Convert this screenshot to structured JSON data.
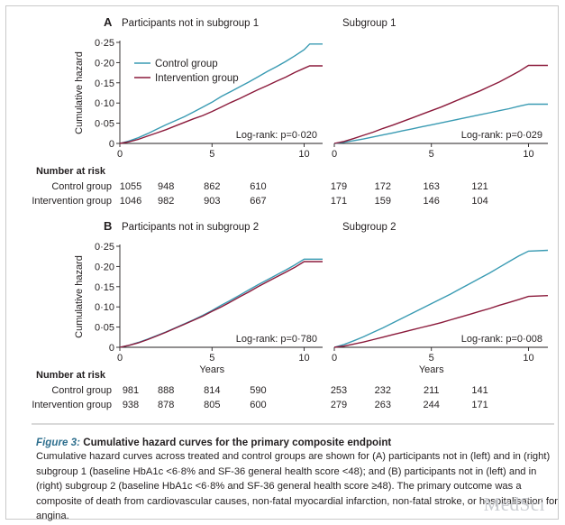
{
  "chart_data": [
    {
      "type": "line",
      "panel_letter": "A",
      "title": "Participants not in subgroup 1",
      "ylabel": "Cumulative hazard",
      "xlabel": "",
      "xlim": [
        0,
        11
      ],
      "ylim": [
        0,
        0.25
      ],
      "xticks": [
        0,
        5,
        10
      ],
      "yticks": [
        "0",
        "0·05",
        "0·10",
        "0·15",
        "0·20",
        "0·25"
      ],
      "legend": "top-left",
      "annotation": "Log-rank: p=0·020",
      "series": [
        {
          "name": "Control group",
          "color": "#3a9bb3",
          "x": [
            0,
            0.5,
            1,
            1.5,
            2,
            2.5,
            3,
            3.5,
            4,
            4.5,
            5,
            5.5,
            6,
            6.5,
            7,
            7.5,
            8,
            8.5,
            9,
            9.5,
            10,
            10.3,
            11
          ],
          "y": [
            0,
            0.006,
            0.014,
            0.024,
            0.035,
            0.046,
            0.056,
            0.066,
            0.078,
            0.09,
            0.102,
            0.116,
            0.128,
            0.14,
            0.152,
            0.165,
            0.178,
            0.19,
            0.203,
            0.217,
            0.232,
            0.246,
            0.246
          ]
        },
        {
          "name": "Intervention group",
          "color": "#8b1a3b",
          "x": [
            0,
            0.5,
            1,
            1.5,
            2,
            2.5,
            3,
            3.5,
            4,
            4.5,
            5,
            5.5,
            6,
            6.5,
            7,
            7.5,
            8,
            8.5,
            9,
            9.5,
            10,
            10.3,
            11
          ],
          "y": [
            0,
            0.004,
            0.01,
            0.018,
            0.026,
            0.034,
            0.043,
            0.052,
            0.061,
            0.069,
            0.079,
            0.09,
            0.101,
            0.111,
            0.122,
            0.133,
            0.143,
            0.154,
            0.164,
            0.176,
            0.186,
            0.192,
            0.192
          ]
        }
      ]
    },
    {
      "type": "line",
      "panel_letter": "",
      "title": "Subgroup 1",
      "ylabel": "",
      "xlabel": "",
      "xlim": [
        0,
        11
      ],
      "ylim": [
        0,
        0.25
      ],
      "xticks": [
        0,
        5,
        10
      ],
      "annotation": "Log-rank: p=0·029",
      "series": [
        {
          "name": "Control group",
          "color": "#3a9bb3",
          "x": [
            0,
            0.5,
            1,
            1.5,
            2,
            2.5,
            3,
            3.5,
            4,
            4.5,
            5,
            5.5,
            6,
            6.5,
            7,
            7.5,
            8,
            8.5,
            9,
            9.5,
            10,
            11
          ],
          "y": [
            0,
            0.003,
            0.007,
            0.011,
            0.016,
            0.021,
            0.026,
            0.031,
            0.036,
            0.041,
            0.046,
            0.051,
            0.056,
            0.061,
            0.066,
            0.071,
            0.076,
            0.081,
            0.086,
            0.092,
            0.097,
            0.097
          ]
        },
        {
          "name": "Intervention group",
          "color": "#8b1a3b",
          "x": [
            0,
            0.5,
            1,
            1.5,
            2,
            2.5,
            3,
            3.5,
            4,
            4.5,
            5,
            5.5,
            6,
            6.5,
            7,
            7.5,
            8,
            8.5,
            9,
            9.5,
            10,
            11
          ],
          "y": [
            0,
            0.005,
            0.012,
            0.02,
            0.028,
            0.037,
            0.045,
            0.054,
            0.063,
            0.072,
            0.081,
            0.09,
            0.1,
            0.11,
            0.12,
            0.13,
            0.141,
            0.152,
            0.165,
            0.178,
            0.193,
            0.193
          ]
        }
      ]
    },
    {
      "type": "line",
      "panel_letter": "B",
      "title": "Participants not in subgroup 2",
      "ylabel": "Cumulative hazard",
      "xlabel": "Years",
      "xlim": [
        0,
        11
      ],
      "ylim": [
        0,
        0.25
      ],
      "xticks": [
        0,
        5,
        10
      ],
      "yticks": [
        "0",
        "0·05",
        "0·10",
        "0·15",
        "0·20",
        "0·25"
      ],
      "annotation": "Log-rank: p=0·780",
      "series": [
        {
          "name": "Control group",
          "color": "#3a9bb3",
          "x": [
            0,
            0.5,
            1,
            1.5,
            2,
            2.5,
            3,
            3.5,
            4,
            4.5,
            5,
            5.5,
            6,
            6.5,
            7,
            7.5,
            8,
            8.5,
            9,
            9.5,
            10,
            11
          ],
          "y": [
            0,
            0.005,
            0.012,
            0.02,
            0.029,
            0.038,
            0.048,
            0.058,
            0.068,
            0.079,
            0.091,
            0.104,
            0.116,
            0.129,
            0.142,
            0.155,
            0.167,
            0.179,
            0.191,
            0.204,
            0.218,
            0.218
          ]
        },
        {
          "name": "Intervention group",
          "color": "#8b1a3b",
          "x": [
            0,
            0.5,
            1,
            1.5,
            2,
            2.5,
            3,
            3.5,
            4,
            4.5,
            5,
            5.5,
            6,
            6.5,
            7,
            7.5,
            8,
            8.5,
            9,
            9.5,
            10,
            11
          ],
          "y": [
            0,
            0.005,
            0.011,
            0.019,
            0.028,
            0.037,
            0.047,
            0.057,
            0.067,
            0.077,
            0.089,
            0.1,
            0.112,
            0.125,
            0.137,
            0.15,
            0.162,
            0.174,
            0.186,
            0.198,
            0.212,
            0.212
          ]
        }
      ]
    },
    {
      "type": "line",
      "panel_letter": "",
      "title": "Subgroup 2",
      "ylabel": "",
      "xlabel": "Years",
      "xlim": [
        0,
        11
      ],
      "ylim": [
        0,
        0.25
      ],
      "xticks": [
        0,
        5,
        10
      ],
      "annotation": "Log-rank: p=0·008",
      "series": [
        {
          "name": "Control group",
          "color": "#3a9bb3",
          "x": [
            0,
            0.5,
            1,
            1.5,
            2,
            2.5,
            3,
            3.5,
            4,
            4.5,
            5,
            5.5,
            6,
            6.5,
            7,
            7.5,
            8,
            8.5,
            9,
            9.5,
            10,
            11
          ],
          "y": [
            0,
            0.007,
            0.016,
            0.026,
            0.037,
            0.048,
            0.06,
            0.072,
            0.084,
            0.096,
            0.108,
            0.12,
            0.132,
            0.145,
            0.158,
            0.171,
            0.184,
            0.198,
            0.212,
            0.226,
            0.238,
            0.24
          ]
        },
        {
          "name": "Intervention group",
          "color": "#8b1a3b",
          "x": [
            0,
            0.5,
            1,
            1.5,
            2,
            2.5,
            3,
            3.5,
            4,
            4.5,
            5,
            5.5,
            6,
            6.5,
            7,
            7.5,
            8,
            8.5,
            9,
            9.5,
            10,
            11
          ],
          "y": [
            0,
            0.003,
            0.008,
            0.013,
            0.019,
            0.025,
            0.031,
            0.037,
            0.043,
            0.049,
            0.055,
            0.061,
            0.068,
            0.075,
            0.082,
            0.089,
            0.096,
            0.104,
            0.111,
            0.118,
            0.126,
            0.128
          ]
        }
      ]
    }
  ],
  "risk_tables": [
    {
      "header": "Number at risk",
      "rows": [
        {
          "label": "Control group",
          "left": [
            "1055",
            "948",
            "862",
            "610"
          ],
          "right": [
            "179",
            "172",
            "163",
            "121"
          ]
        },
        {
          "label": "Intervention group",
          "left": [
            "1046",
            "982",
            "903",
            "667"
          ],
          "right": [
            "171",
            "159",
            "146",
            "104"
          ]
        }
      ]
    },
    {
      "header": "Number at risk",
      "rows": [
        {
          "label": "Control group",
          "left": [
            "981",
            "888",
            "814",
            "590"
          ],
          "right": [
            "253",
            "232",
            "211",
            "141"
          ]
        },
        {
          "label": "Intervention group",
          "left": [
            "938",
            "878",
            "805",
            "600"
          ],
          "right": [
            "279",
            "263",
            "244",
            "171"
          ]
        }
      ]
    }
  ],
  "caption": {
    "figure_label": "Figure 3:",
    "title": " Cumulative hazard curves for the primary composite endpoint",
    "body": "Cumulative hazard curves across treated and control groups are shown for (A) participants not in (left) and in (right) subgroup 1 (baseline HbA1c <6·8% and SF-36 general health score <48); and (B) participants not in (left) and in (right) subgroup 2 (baseline HbA1c <6·8% and SF-36 general health score ≥48). The primary outcome was a composite of death from cardiovascular causes, non-fatal myocardial infarction, non-fatal stroke, or hospitalisation for angina."
  },
  "watermark": "MedSci"
}
